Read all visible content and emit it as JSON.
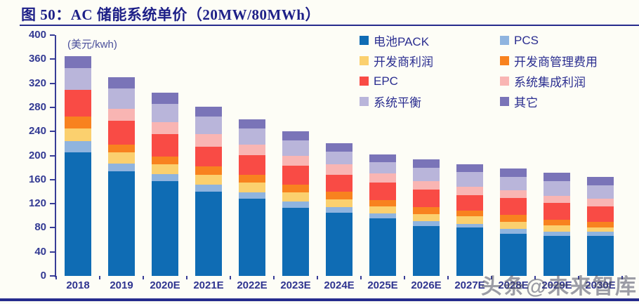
{
  "header": {
    "title": "图 50：AC 储能系统单价（20MW/80MWh）"
  },
  "watermark": "头条@未来智库",
  "colors": {
    "title_text": "#1e2088",
    "axis_text": "#333a93",
    "axis_line": "#383d97",
    "rule_navy": "#262b8d",
    "background": "#fdfdf6"
  },
  "chart_data": {
    "type": "bar",
    "stacked": true,
    "title": "AC 储能系统单价（20MW/80MWh）",
    "unit_label": "(美元/kwh)",
    "xlabel": "",
    "ylabel": "美元/kwh",
    "ylim": [
      0,
      400
    ],
    "ytick_step": 40,
    "grid": false,
    "legend_position": "top-right",
    "legend_columns": 2,
    "categories": [
      "2018",
      "2019",
      "2020E",
      "2021E",
      "2022E",
      "2023E",
      "2024E",
      "2025E",
      "2026E",
      "2027E",
      "2028E",
      "2029E",
      "2030E"
    ],
    "series": [
      {
        "name": "电池PACK",
        "color": "#0f6cb4",
        "values": [
          205,
          174,
          157,
          140,
          128,
          113,
          105,
          96,
          83,
          80,
          70,
          67,
          66
        ]
      },
      {
        "name": "PCS",
        "color": "#8fb4df",
        "values": [
          19,
          13,
          12,
          12,
          11,
          11,
          9,
          8,
          8,
          6,
          8,
          7,
          7
        ]
      },
      {
        "name": "开发商利润",
        "color": "#fbd06e",
        "values": [
          21,
          18,
          16,
          16,
          16,
          15,
          13,
          12,
          12,
          13,
          12,
          10,
          8
        ]
      },
      {
        "name": "开发商管理费用",
        "color": "#f8821f",
        "values": [
          20,
          13,
          13,
          14,
          13,
          13,
          13,
          10,
          11,
          9,
          11,
          9,
          9
        ]
      },
      {
        "name": "EPC",
        "color": "#f94b45",
        "values": [
          44,
          40,
          37,
          33,
          32,
          31,
          28,
          29,
          30,
          26,
          29,
          28,
          26
        ]
      },
      {
        "name": "系统集成利润",
        "color": "#f9b5b3",
        "values": [
          0,
          20,
          20,
          21,
          18,
          17,
          17,
          15,
          14,
          14,
          12,
          12,
          12
        ]
      },
      {
        "name": "系统平衡",
        "color": "#b9b5da",
        "values": [
          36,
          33,
          31,
          29,
          27,
          25,
          21,
          19,
          22,
          25,
          22,
          25,
          23
        ]
      },
      {
        "name": "其它",
        "color": "#7a74b8",
        "values": [
          20,
          19,
          18,
          16,
          15,
          15,
          14,
          13,
          14,
          13,
          14,
          13,
          13
        ]
      }
    ],
    "totals": [
      365,
      330,
      304,
      281,
      260,
      240,
      220,
      202,
      194,
      186,
      178,
      171,
      164
    ]
  }
}
